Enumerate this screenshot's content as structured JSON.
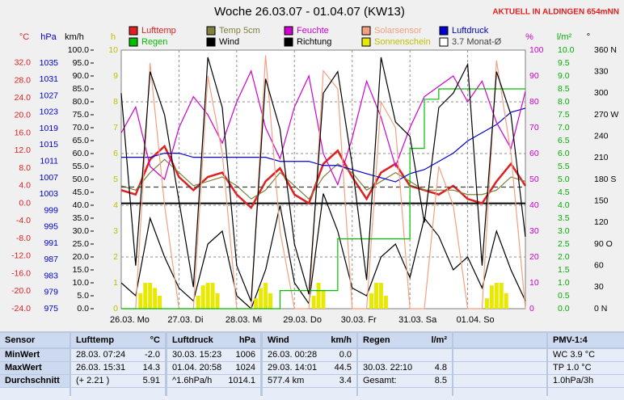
{
  "title": "Woche 26.03.07 - 01.04.07 (KW13)",
  "location": "AKTUELL IN ALDINGEN 654mNN",
  "chart_data": {
    "type": "line",
    "x": [
      0,
      6,
      12,
      18,
      24,
      30,
      36,
      42,
      48,
      54,
      60,
      66,
      72,
      78,
      84,
      90,
      96,
      102,
      108,
      114,
      120,
      126,
      132,
      138,
      144,
      150,
      156,
      162,
      168
    ],
    "xlim": [
      0,
      168
    ],
    "xticks": [
      {
        "value": 0,
        "label": "26.03.  Mo"
      },
      {
        "value": 24,
        "label": "27.03.  Di"
      },
      {
        "value": 48,
        "label": "28.03.  Mi"
      },
      {
        "value": 72,
        "label": "29.03.  Do"
      },
      {
        "value": 96,
        "label": "30.03.  Fr"
      },
      {
        "value": 120,
        "label": "31.03.  Sa"
      },
      {
        "value": 144,
        "label": "01.04.  So"
      }
    ],
    "grid": true,
    "axes": [
      {
        "label": "°C",
        "color": "#e02020",
        "ylim": [
          -24,
          34.9
        ],
        "yticks": [
          {
            "value": -24,
            "label": "-24.0"
          },
          {
            "value": -20,
            "label": "-20.0"
          },
          {
            "value": -16,
            "label": "-16.0"
          },
          {
            "value": -12,
            "label": "-12.0"
          },
          {
            "value": -8,
            "label": "-8.0"
          },
          {
            "value": -4,
            "label": "-4.0"
          },
          {
            "value": 0,
            "label": "0.0"
          },
          {
            "value": 4,
            "label": "4.0"
          },
          {
            "value": 8,
            "label": "8.0"
          },
          {
            "value": 12,
            "label": "12.0"
          },
          {
            "value": 16,
            "label": "16.0"
          },
          {
            "value": 20,
            "label": "20.0"
          },
          {
            "value": 24,
            "label": "24.0"
          },
          {
            "value": 28,
            "label": "28.0"
          },
          {
            "value": 32,
            "label": "32.0"
          }
        ],
        "series": [
          {
            "name": "Lufttemp",
            "color": "#e02020",
            "values": [
              3,
              2,
              10,
              13,
              6,
              3,
              6,
              7,
              2,
              -1,
              5,
              8,
              2,
              0,
              9,
              12,
              6,
              1,
              7,
              9,
              4,
              3,
              2,
              4,
              1,
              0,
              5,
              9,
              4
            ]
          },
          {
            "name": "Temp 5cm",
            "color": "#808040",
            "values": [
              4,
              3,
              7,
              10,
              7,
              4,
              5,
              6,
              4,
              1,
              3,
              7,
              4,
              1,
              6,
              9,
              7,
              3,
              5,
              7,
              5,
              3,
              3,
              3,
              2,
              2,
              3,
              6,
              5
            ]
          },
          {
            "name": "3.7 Monat-Ø",
            "color": "#404040",
            "dashed": true,
            "x": [
              0,
              168
            ],
            "values": [
              3.7,
              3.7
            ]
          }
        ]
      },
      {
        "label": "hPa",
        "color": "#0000d0",
        "ylim": [
          975,
          1038.2
        ],
        "yticks": [
          975,
          979,
          983,
          987,
          991,
          995,
          999,
          1003,
          1007,
          1011,
          1015,
          1019,
          1023,
          1027,
          1031,
          1035
        ],
        "series": [
          {
            "name": "Luftdruck",
            "color": "#0000d0",
            "values": [
              1012,
              1012,
              1012,
              1013,
              1013,
              1012,
              1012,
              1012,
              1012,
              1012,
              1012,
              1011,
              1011,
              1011,
              1010,
              1010,
              1009,
              1008,
              1007,
              1006,
              1008,
              1009,
              1011,
              1013,
              1016,
              1018,
              1020,
              1023,
              1024
            ]
          }
        ]
      },
      {
        "label": "km/h",
        "color": "#000000",
        "ylim": [
          0,
          100
        ],
        "yticks": [
          {
            "value": 0,
            "label": "0.0"
          },
          {
            "value": 5,
            "label": "5.0"
          },
          {
            "value": 10,
            "label": "10.0"
          },
          {
            "value": 15,
            "label": "15.0"
          },
          {
            "value": 20,
            "label": "20.0"
          },
          {
            "value": 25,
            "label": "25.0"
          },
          {
            "value": 30,
            "label": "30.0"
          },
          {
            "value": 35,
            "label": "35.0"
          },
          {
            "value": 40,
            "label": "40.0"
          },
          {
            "value": 45,
            "label": "45.0"
          },
          {
            "value": 50,
            "label": "50.0"
          },
          {
            "value": 55,
            "label": "55.0"
          },
          {
            "value": 60,
            "label": "60.0"
          },
          {
            "value": 65,
            "label": "65.0"
          },
          {
            "value": 70,
            "label": "70.0"
          },
          {
            "value": 75,
            "label": "75.0"
          },
          {
            "value": 80,
            "label": "80.0"
          },
          {
            "value": 85,
            "label": "85.0"
          },
          {
            "value": 90,
            "label": "90.0"
          },
          {
            "value": 95,
            "label": "95.0"
          },
          {
            "value": 100,
            "label": "100.0"
          }
        ],
        "series": [
          {
            "name": "Wind",
            "color": "#000000",
            "values": [
              10,
              5,
              35,
              20,
              8,
              3,
              25,
              30,
              5,
              0,
              15,
              40,
              10,
              2,
              44.5,
              30,
              8,
              5,
              20,
              25,
              12,
              35,
              28,
              15,
              20,
              8,
              30,
              15,
              3
            ]
          }
        ]
      },
      {
        "label": "h",
        "color": "#c0c000",
        "ylim": [
          0,
          10
        ],
        "yticks": [
          0,
          1,
          2,
          3,
          4,
          5,
          6,
          7,
          8,
          9,
          10
        ],
        "series": [
          {
            "name": "Sonnenschein",
            "color": "#e8e800",
            "type": "bar",
            "x": [
              8,
              10,
              12,
              14,
              16,
              32,
              34,
              36,
              38,
              40,
              56,
              58,
              60,
              62,
              80,
              82,
              84,
              104,
              106,
              108,
              110,
              152,
              154,
              156,
              158,
              160
            ],
            "values": [
              0.6,
              1.0,
              1.0,
              0.8,
              0.5,
              0.5,
              0.9,
              1.0,
              1.0,
              0.6,
              0.4,
              0.8,
              1.0,
              0.6,
              0.5,
              1.0,
              0.7,
              0.6,
              1.0,
              1.0,
              0.5,
              0.4,
              0.9,
              1.0,
              1.0,
              0.6
            ]
          }
        ]
      },
      {
        "label": "%",
        "color": "#d000d0",
        "ylim": [
          0,
          100
        ],
        "yticks": [
          0,
          10,
          20,
          30,
          40,
          50,
          60,
          70,
          80,
          90,
          100
        ],
        "series": [
          {
            "name": "Feuchte",
            "color": "#d000d0",
            "values": [
              68,
              78,
              55,
              50,
              70,
              82,
              75,
              64,
              80,
              92,
              70,
              58,
              78,
              90,
              60,
              48,
              66,
              88,
              74,
              55,
              70,
              82,
              86,
              90,
              80,
              88,
              72,
              62,
              84
            ]
          },
          {
            "name": "Solarsensor",
            "color": "#f4a080",
            "values": [
              0,
              0,
              95,
              40,
              0,
              0,
              90,
              60,
              0,
              0,
              98,
              30,
              0,
              0,
              92,
              85,
              0,
              0,
              80,
              70,
              0,
              0,
              55,
              40,
              0,
              0,
              96,
              60,
              0
            ]
          }
        ]
      },
      {
        "label": "l/m²",
        "color": "#00b000",
        "ylim": [
          0,
          10
        ],
        "yticks": [
          {
            "value": 0,
            "label": "0.0"
          },
          {
            "value": 0.5,
            "label": "0.5"
          },
          {
            "value": 1,
            "label": "1.0"
          },
          {
            "value": 1.5,
            "label": "1.5"
          },
          {
            "value": 2,
            "label": "2.0"
          },
          {
            "value": 2.5,
            "label": "2.5"
          },
          {
            "value": 3,
            "label": "3.0"
          },
          {
            "value": 3.5,
            "label": "3.5"
          },
          {
            "value": 4,
            "label": "4.0"
          },
          {
            "value": 4.5,
            "label": "4.5"
          },
          {
            "value": 5,
            "label": "5.0"
          },
          {
            "value": 5.5,
            "label": "5.5"
          },
          {
            "value": 6,
            "label": "6.0"
          },
          {
            "value": 6.5,
            "label": "6.5"
          },
          {
            "value": 7,
            "label": "7.0"
          },
          {
            "value": 7.5,
            "label": "7.5"
          },
          {
            "value": 8,
            "label": "8.0"
          },
          {
            "value": 8.5,
            "label": "8.5"
          },
          {
            "value": 9,
            "label": "9.0"
          },
          {
            "value": 9.5,
            "label": "9.5"
          },
          {
            "value": 10,
            "label": "10.0"
          }
        ],
        "series": [
          {
            "name": "Regen",
            "color": "#00c000",
            "step": true,
            "values": [
              0,
              0,
              0,
              0,
              0,
              0,
              0,
              0,
              0,
              0,
              0,
              0.7,
              0.7,
              0.7,
              0.7,
              2.7,
              2.7,
              2.7,
              2.7,
              2.7,
              6.2,
              8.1,
              8.5,
              8.5,
              8.5,
              8.5,
              8.5,
              8.5,
              8.5
            ]
          }
        ]
      },
      {
        "label": "°",
        "color": "#000000",
        "ylim": [
          0,
          360
        ],
        "yticks": [
          {
            "value": 0,
            "label": "0  N"
          },
          30,
          60,
          {
            "value": 90,
            "label": "90  O"
          },
          120,
          150,
          {
            "value": 180,
            "label": "180  S"
          },
          210,
          240,
          {
            "value": 270,
            "label": "270  W"
          },
          300,
          330,
          {
            "value": 360,
            "label": "360  N"
          }
        ],
        "series": [
          {
            "name": "Richtung",
            "color": "#000000",
            "values": [
              300,
              60,
              330,
              270,
              150,
              30,
              350,
              280,
              60,
              10,
              320,
              250,
              90,
              20,
              300,
              330,
              200,
              40,
              350,
              260,
              240,
              120,
              280,
              300,
              340,
              60,
              330,
              270,
              100
            ]
          }
        ]
      }
    ]
  },
  "table": {
    "header": {
      "sensor": "Sensor",
      "lufttemp": [
        "Lufttemp",
        "°C"
      ],
      "luftdruck": [
        "Luftdruck",
        "hPa"
      ],
      "wind": [
        "Wind",
        "km/h"
      ],
      "regen": [
        "Regen",
        "l/m²"
      ],
      "pmv": "PMV-1:4"
    },
    "rows": [
      {
        "sensor": "MinWert",
        "lufttemp": [
          "28.03.  07:24",
          "-2.0"
        ],
        "luftdruck": [
          "30.03.  15:23",
          "1006"
        ],
        "wind": [
          "26.03.  00:28",
          "0.0"
        ],
        "pmv": "WC 3.9 °C"
      },
      {
        "sensor": "MaxWert",
        "lufttemp": [
          "26.03.  15:31",
          "14.3"
        ],
        "luftdruck": [
          "01.04.  20:58",
          "1024"
        ],
        "wind": [
          "29.03.  14:01",
          "44.5"
        ],
        "regen": [
          "30.03.  22:10",
          "4.8"
        ],
        "pmv": "TP 1.0 °C"
      },
      {
        "sensor": "Durchschnitt",
        "lufttemp": [
          "(+ 2.21 )",
          "5.91"
        ],
        "luftdruck": [
          "^1.6hPa/h",
          "1014.1"
        ],
        "wind": [
          "577.4 km",
          "3.4"
        ],
        "regen": [
          "Gesamt:",
          "8.5"
        ],
        "pmv": "1.0hPa/3h"
      }
    ]
  }
}
